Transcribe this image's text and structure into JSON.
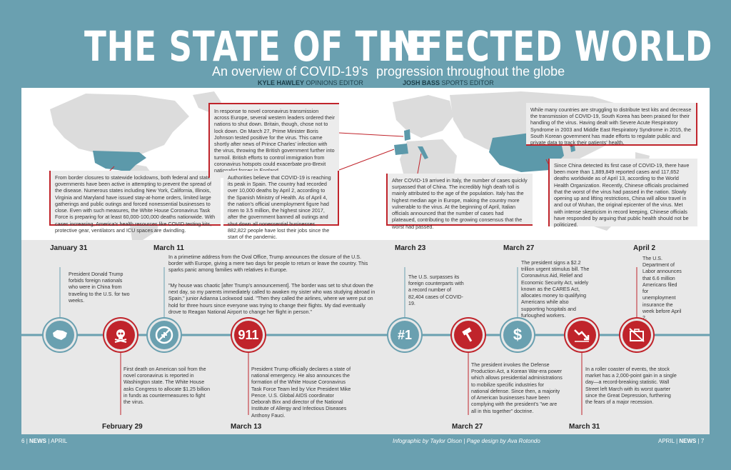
{
  "header": {
    "title_left": "THE STATE OF THE",
    "title_right": "INFECTED WORLD",
    "subtitle_left": "An overview of COVID-19's",
    "subtitle_right": "progression throughout the globe",
    "author1_name": "KYLE HAWLEY",
    "author1_role": "OPINIONS EDITOR",
    "author2_name": "JOSH BASS",
    "author2_role": "SPORTS EDITOR"
  },
  "map_boxes": {
    "us": "From border closures to statewide lockdowns, both federal and state governments have been active in attempting to prevent the spread of the disease. Numerous states including New York, California, Illinois, Virginia and Maryland have issued stay-at-home orders, limited large gatherings and public outings and forced nonessential businesses to close. Even with such measures, the White House Coronavirus Task Force is preparing for at least 60,000-100,000 deaths nationwide. With cases increasing, America's health resources like COVID testing kits, protective gear, ventilators and ICU spaces are dwindling.",
    "europe": "In response to novel coronavirus transmission across Europe, several western leaders ordered their nations to shut down. Britain, though, chose not to lock down. On March 27, Prime Minister Boris Johnson tested positive for the virus. This came shortly after news of Prince Charles' infection with the virus, throwing the British government further into turmoil. British efforts to control immigration from coronavirus hotspots could exacerbate pro-Brexit nationalist forces in England.",
    "spain": "Authorities believe that COVID-19 is reaching its peak in Spain. The country had recorded over 10,000 deaths by April 2, according to the Spanish Ministry of Health. As of April 4, the nation's official unemployment figure had risen to 3.5 million, the highest since 2017, after the government banned all outings and shut down all nonessential businesses. 882,822 people have lost their jobs since the start of the pandemic.",
    "italy": "After COVID-19 arrived in Italy, the number of cases quickly surpassed that of China. The incredibly high death toll is mainly attributed to the age of the population. Italy has the highest median age in Europe, making the country more vulnerable to the virus. At the beginning of April, Italian officials announced that the number of cases had plateaued, contributing to the growing consensus that the worst had passed.",
    "korea": "While many countries are struggling to distribute test kits and decrease the transmission of COVID-19, South Korea has been praised for their handling of the virus. Having dealt with Severe Acute Respiratory Syndrome in 2003 and Middle East Respiratory Syndrome in 2015, the South Korean government has made efforts to regulate public and private data to track their patients' health.",
    "china": "Since China detected its first case of COVID-19, there have been more than 1,889,849 reported cases and 117,652 deaths worldwide as of April 13, according to the World Health Organization. Recently, Chinese officials proclaimed that the worst of the virus had passed in the nation. Slowly opening up and lifting restrictions, China will allow travel in and out of Wuhan, the original epicenter of the virus. Met with intense skepticism in record keeping, Chinese officials have responded by arguing that public health should not be politicized."
  },
  "timeline": [
    {
      "date": "January 31",
      "icon": "china-map-icon",
      "text": "President Donald Trump forbids foreign nationals who were in China from traveling to the U.S. for two weeks."
    },
    {
      "date": "February 29",
      "icon": "skull-icon",
      "text": "First death on American soil from the novel coronavirus is reported in Washington state. The White House asks Congress to allocate $1.25 billion in funds as countermeasures to fight the virus."
    },
    {
      "date": "March 11",
      "icon": "no-flights-icon",
      "text": "In a primetime address from the Oval Office, Trump announces the closure of the U.S. border with Europe, giving a mere two days for people to return or leave the country. This sparks panic among families with relatives in Europe.",
      "quote": "\"My house was chaotic [after Trump's announcement]. The border was set to shut down the next day, so my parents immediately called to awaken my sister who was studying abroad in Spain,\" junior Adianna Lockwood said. \"Then they called the airlines, where we were put on hold for three hours since everyone was trying to change their flights. My dad eventually drove to Reagan National Airport to change her flight in person.\""
    },
    {
      "date": "March 13",
      "icon": "911-icon",
      "glyph": "911",
      "text": "President Trump officially declares a state of national emergency. He also announces the formation of the White House Coronavirus Task Force Team led by Vice President Mike Pence. U.S. Global AIDS coordinator Deborah Birx and director of the National Institute of Allergy and Infectious Diseases Anthony Fauci."
    },
    {
      "date": "March 23",
      "icon": "number-one-icon",
      "glyph": "#1",
      "text": "The U.S. surpasses its foreign counterparts with a record number of 82,404 cases of COVID-19."
    },
    {
      "date": "March 27",
      "icon": "hammer-icon",
      "text": "The president invokes the Defense Production Act, a Korean War-era power which allows presidential administrations to mobilize specific industries for national defense. Since then, a majority of American businesses have been complying with the president's \"we are all in this together\" doctrine."
    },
    {
      "date": "March 27",
      "icon": "dollar-icon",
      "glyph": "$",
      "text": "The president signs a $2.2 trillion urgent stimulus bill. The Coronavirus Aid, Relief and Economic Security Act, widely known as the CARES Act, allocates money to qualifying Americans while also supporting hospitals and furloughed workers."
    },
    {
      "date": "March 31",
      "icon": "stock-decline-icon",
      "text": "In a roller coaster of events, the stock market has a 2,000-point gain in a single day—a record-breaking statistic. Wall Street left March with its worst quarter since the Great Depression, furthering the fears of a major recession."
    },
    {
      "date": "April 2",
      "icon": "no-jobs-icon",
      "text": "The U.S. Department of Labor announces that 6.6 million Americans filed for unemployment insurance the week before April 2."
    }
  ],
  "footer": {
    "left_page": "6",
    "left_section": "NEWS",
    "left_month": "APRIL",
    "credits": "Infographic by Taylor Olson | Page design by Ava Rotondo",
    "right_month": "APRIL",
    "right_section": "NEWS",
    "right_page": "7"
  }
}
